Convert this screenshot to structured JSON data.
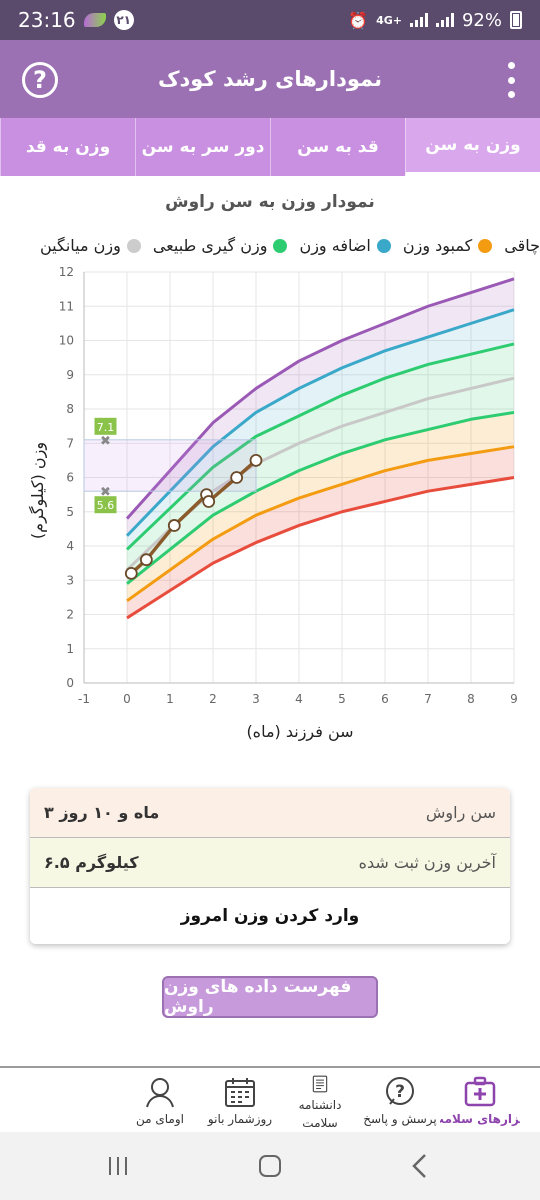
{
  "status_bar": {
    "time": "23:16",
    "notification_count": "۲۱",
    "network": "4G+",
    "battery": "92%"
  },
  "app_bar": {
    "title": "نمودارهای رشد کودک",
    "help_icon": "help-circle-icon",
    "menu_icon": "more-vertical-icon"
  },
  "tabs": [
    {
      "label": "وزن به سن",
      "active": true
    },
    {
      "label": "قد به سن",
      "active": false
    },
    {
      "label": "دور سر به سن",
      "active": false
    },
    {
      "label": "وزن به قد",
      "active": false
    }
  ],
  "chart_data": {
    "type": "line",
    "title": "نمودار وزن به سن راوش",
    "xlabel": "سن فرزند (ماه)",
    "ylabel": "وزن (کیلوگرم)",
    "xlim": [
      -1,
      9
    ],
    "ylim": [
      0,
      12
    ],
    "x_ticks": [
      -1,
      0,
      1,
      2,
      3,
      4,
      5,
      6,
      7,
      8,
      9
    ],
    "y_ticks": [
      0,
      1,
      2,
      3,
      4,
      5,
      6,
      7,
      8,
      9,
      10,
      11,
      12
    ],
    "legend": [
      {
        "label": "چاقی",
        "color": "#9b59b6"
      },
      {
        "label": "کمبود وزن",
        "color": "#f39c12"
      },
      {
        "label": "اضافه وزن",
        "color": "#3aa8c9"
      },
      {
        "label": "وزن گیری طبیعی",
        "color": "#2ecc71"
      },
      {
        "label": "وزن میانگین",
        "color": "#cccccc"
      }
    ],
    "curves": [
      {
        "name": "obese",
        "color": "#9b59b6",
        "points": [
          [
            0,
            4.8
          ],
          [
            1,
            6.2
          ],
          [
            2,
            7.6
          ],
          [
            3,
            8.6
          ],
          [
            4,
            9.4
          ],
          [
            5,
            10.0
          ],
          [
            6,
            10.5
          ],
          [
            7,
            11.0
          ],
          [
            8,
            11.4
          ],
          [
            9,
            11.8
          ]
        ]
      },
      {
        "name": "overweight",
        "color": "#3aa8c9",
        "points": [
          [
            0,
            4.3
          ],
          [
            1,
            5.6
          ],
          [
            2,
            6.9
          ],
          [
            3,
            7.9
          ],
          [
            4,
            8.6
          ],
          [
            5,
            9.2
          ],
          [
            6,
            9.7
          ],
          [
            7,
            10.1
          ],
          [
            8,
            10.5
          ],
          [
            9,
            10.9
          ]
        ]
      },
      {
        "name": "normal",
        "color": "#2ecc71",
        "points": [
          [
            0,
            3.9
          ],
          [
            1,
            5.1
          ],
          [
            2,
            6.3
          ],
          [
            3,
            7.2
          ],
          [
            4,
            7.8
          ],
          [
            5,
            8.4
          ],
          [
            6,
            8.9
          ],
          [
            7,
            9.3
          ],
          [
            8,
            9.6
          ],
          [
            9,
            9.9
          ]
        ]
      },
      {
        "name": "average",
        "color": "#c8c8c8",
        "points": [
          [
            0,
            3.3
          ],
          [
            1,
            4.5
          ],
          [
            2,
            5.6
          ],
          [
            3,
            6.4
          ],
          [
            4,
            7.0
          ],
          [
            5,
            7.5
          ],
          [
            6,
            7.9
          ],
          [
            7,
            8.3
          ],
          [
            8,
            8.6
          ],
          [
            9,
            8.9
          ]
        ]
      },
      {
        "name": "underweight-upper",
        "color": "#2ecc71",
        "points": [
          [
            0,
            2.9
          ],
          [
            1,
            3.9
          ],
          [
            2,
            4.9
          ],
          [
            3,
            5.6
          ],
          [
            4,
            6.2
          ],
          [
            5,
            6.7
          ],
          [
            6,
            7.1
          ],
          [
            7,
            7.4
          ],
          [
            8,
            7.7
          ],
          [
            9,
            7.9
          ]
        ]
      },
      {
        "name": "underweight",
        "color": "#f39c12",
        "points": [
          [
            0,
            2.4
          ],
          [
            1,
            3.3
          ],
          [
            2,
            4.2
          ],
          [
            3,
            4.9
          ],
          [
            4,
            5.4
          ],
          [
            5,
            5.8
          ],
          [
            6,
            6.2
          ],
          [
            7,
            6.5
          ],
          [
            8,
            6.7
          ],
          [
            9,
            6.9
          ]
        ]
      },
      {
        "name": "severe",
        "color": "#e74c3c",
        "points": [
          [
            0,
            1.9
          ],
          [
            1,
            2.7
          ],
          [
            2,
            3.5
          ],
          [
            3,
            4.1
          ],
          [
            4,
            4.6
          ],
          [
            5,
            5.0
          ],
          [
            6,
            5.3
          ],
          [
            7,
            5.6
          ],
          [
            8,
            5.8
          ],
          [
            9,
            6.0
          ]
        ]
      }
    ],
    "child_series": {
      "color": "#8a5a2a",
      "points": [
        [
          0.1,
          3.2
        ],
        [
          0.45,
          3.6
        ],
        [
          1.1,
          4.6
        ],
        [
          1.85,
          5.5
        ],
        [
          1.9,
          5.3
        ],
        [
          2.55,
          6.0
        ],
        [
          3.0,
          6.5
        ]
      ]
    },
    "range_markers": {
      "upper": 7.1,
      "lower": 5.6,
      "upper_label": "7.1",
      "lower_label": "5.6"
    }
  },
  "info": {
    "age_label": "سن راوش",
    "age_value": "۳ ماه و ۱۰ روز",
    "weight_label": "آخرین وزن ثبت شده",
    "weight_value": "۶.۵ کیلوگرم",
    "enter_weight": "وارد کردن وزن امروز"
  },
  "list_button": "فهرست داده های وزن راوش",
  "bottom_nav": [
    {
      "label": "ابزارهای سلامت",
      "icon": "medical-kit-icon",
      "active": true
    },
    {
      "label": "پرسش و پاسخ",
      "icon": "question-bubble-icon",
      "active": false
    },
    {
      "label": "دانشنامه سلامت",
      "icon": "encyclopedia-icon",
      "active": false
    },
    {
      "label": "روزشمار بانو",
      "icon": "calendar-icon",
      "active": false
    },
    {
      "label": "اومای من",
      "icon": "profile-icon",
      "active": false
    }
  ]
}
